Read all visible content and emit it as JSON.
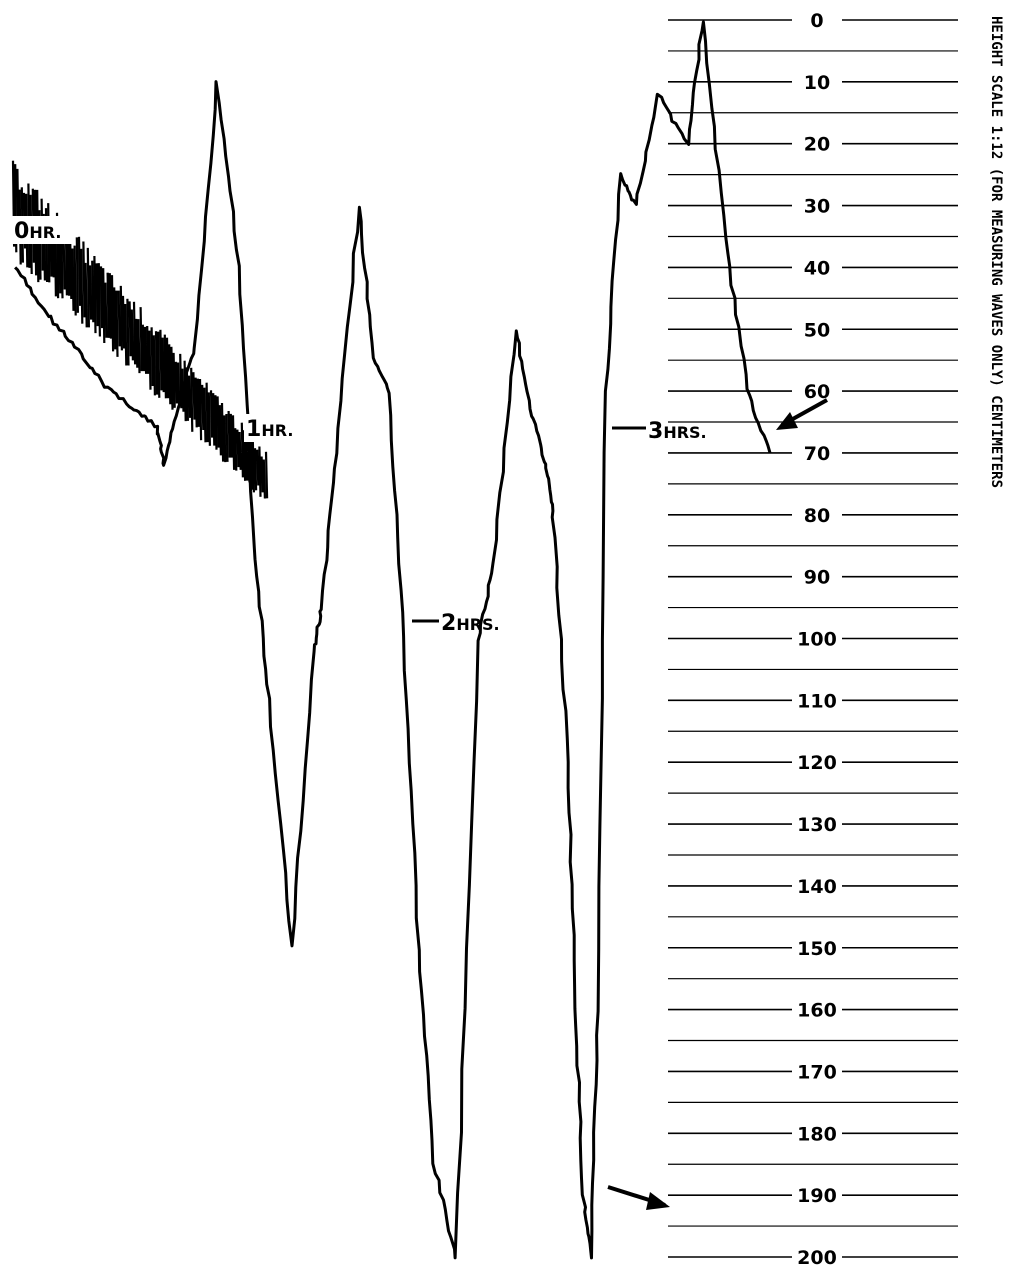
{
  "chart_data": {
    "type": "line",
    "title": "",
    "xlabel": "",
    "ylabel": "HEIGHT SCALE 1:12 (FOR MEASURING WAVES ONLY) CENTIMETERS",
    "y_ticks": [
      "0",
      "10",
      "20",
      "30",
      "40",
      "50",
      "60",
      "70",
      "80",
      "90",
      "100",
      "110",
      "120",
      "130",
      "140",
      "150",
      "160",
      "170",
      "180",
      "190",
      "200"
    ],
    "y_range": [
      0,
      200
    ],
    "y_inverted": true,
    "grid": true,
    "time_markers": [
      {
        "label": "0",
        "unit": "HR."
      },
      {
        "label": "1",
        "unit": "HR."
      },
      {
        "label": "2",
        "unit": "HRS."
      },
      {
        "label": "3",
        "unit": "HRS."
      }
    ],
    "series": [
      {
        "x": [
          0,
          0.2,
          0.4,
          0.6,
          0.8,
          0.95,
          1.0,
          1.1,
          1.2,
          1.35,
          1.5,
          1.6,
          1.7,
          1.85,
          2.0,
          2.05,
          2.15,
          2.3,
          2.4,
          2.5,
          2.6,
          2.7,
          2.8,
          2.95,
          3.1,
          3.2,
          3.35,
          3.45,
          3.55,
          3.6,
          3.7,
          3.75,
          3.8,
          3.85,
          3.9,
          3.95,
          4.05,
          4.15,
          4.3,
          4.5,
          4.6,
          4.75,
          4.9,
          5.05
        ],
        "y": [
          40,
          47,
          53,
          59,
          63,
          66,
          72,
          62,
          53,
          10,
          40,
          85,
          110,
          150,
          102,
          95,
          70,
          30,
          55,
          60,
          100,
          150,
          185,
          200,
          100,
          88,
          50,
          63,
          72,
          80,
          120,
          160,
          190,
          200,
          160,
          60,
          25,
          30,
          12,
          20,
          0,
          35,
          60,
          70
        ],
        "note": ""
      }
    ],
    "arrows": [
      "to 190",
      "to 65"
    ]
  }
}
